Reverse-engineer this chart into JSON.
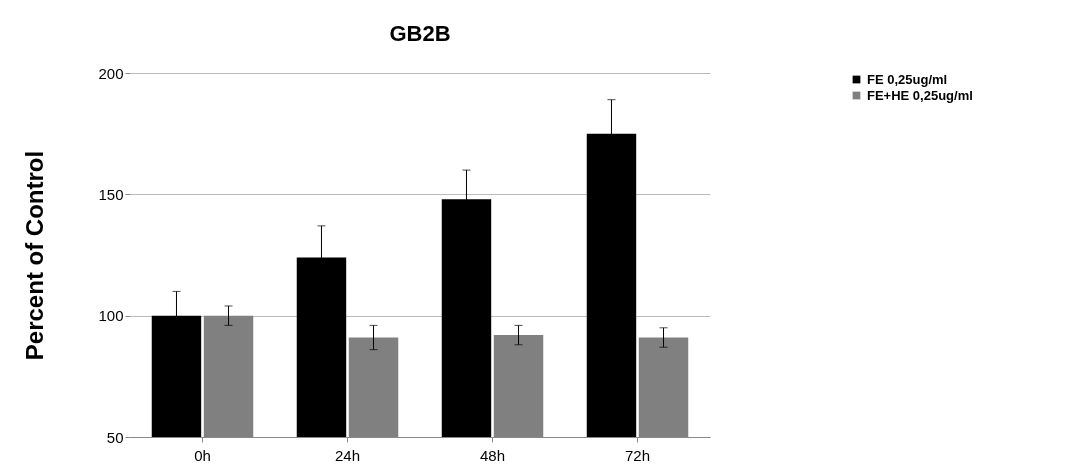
{
  "chart_data": {
    "type": "bar",
    "title": "GB2B",
    "ylabel": "Percent of Control",
    "categories": [
      "0h",
      "24h",
      "48h",
      "72h"
    ],
    "series": [
      {
        "name": "FE 0,25ug/ml",
        "color": "#000000",
        "values": [
          100,
          124,
          148,
          175
        ],
        "errors": [
          10,
          13,
          12,
          14
        ]
      },
      {
        "name": "FE+HE 0,25ug/ml",
        "color": "#808080",
        "values": [
          100,
          91,
          92,
          91
        ],
        "errors": [
          4,
          5,
          4,
          4
        ]
      }
    ],
    "ylim": [
      50,
      200
    ],
    "yticks": [
      50,
      100,
      150,
      200
    ],
    "grid": "y",
    "legend": "right"
  }
}
